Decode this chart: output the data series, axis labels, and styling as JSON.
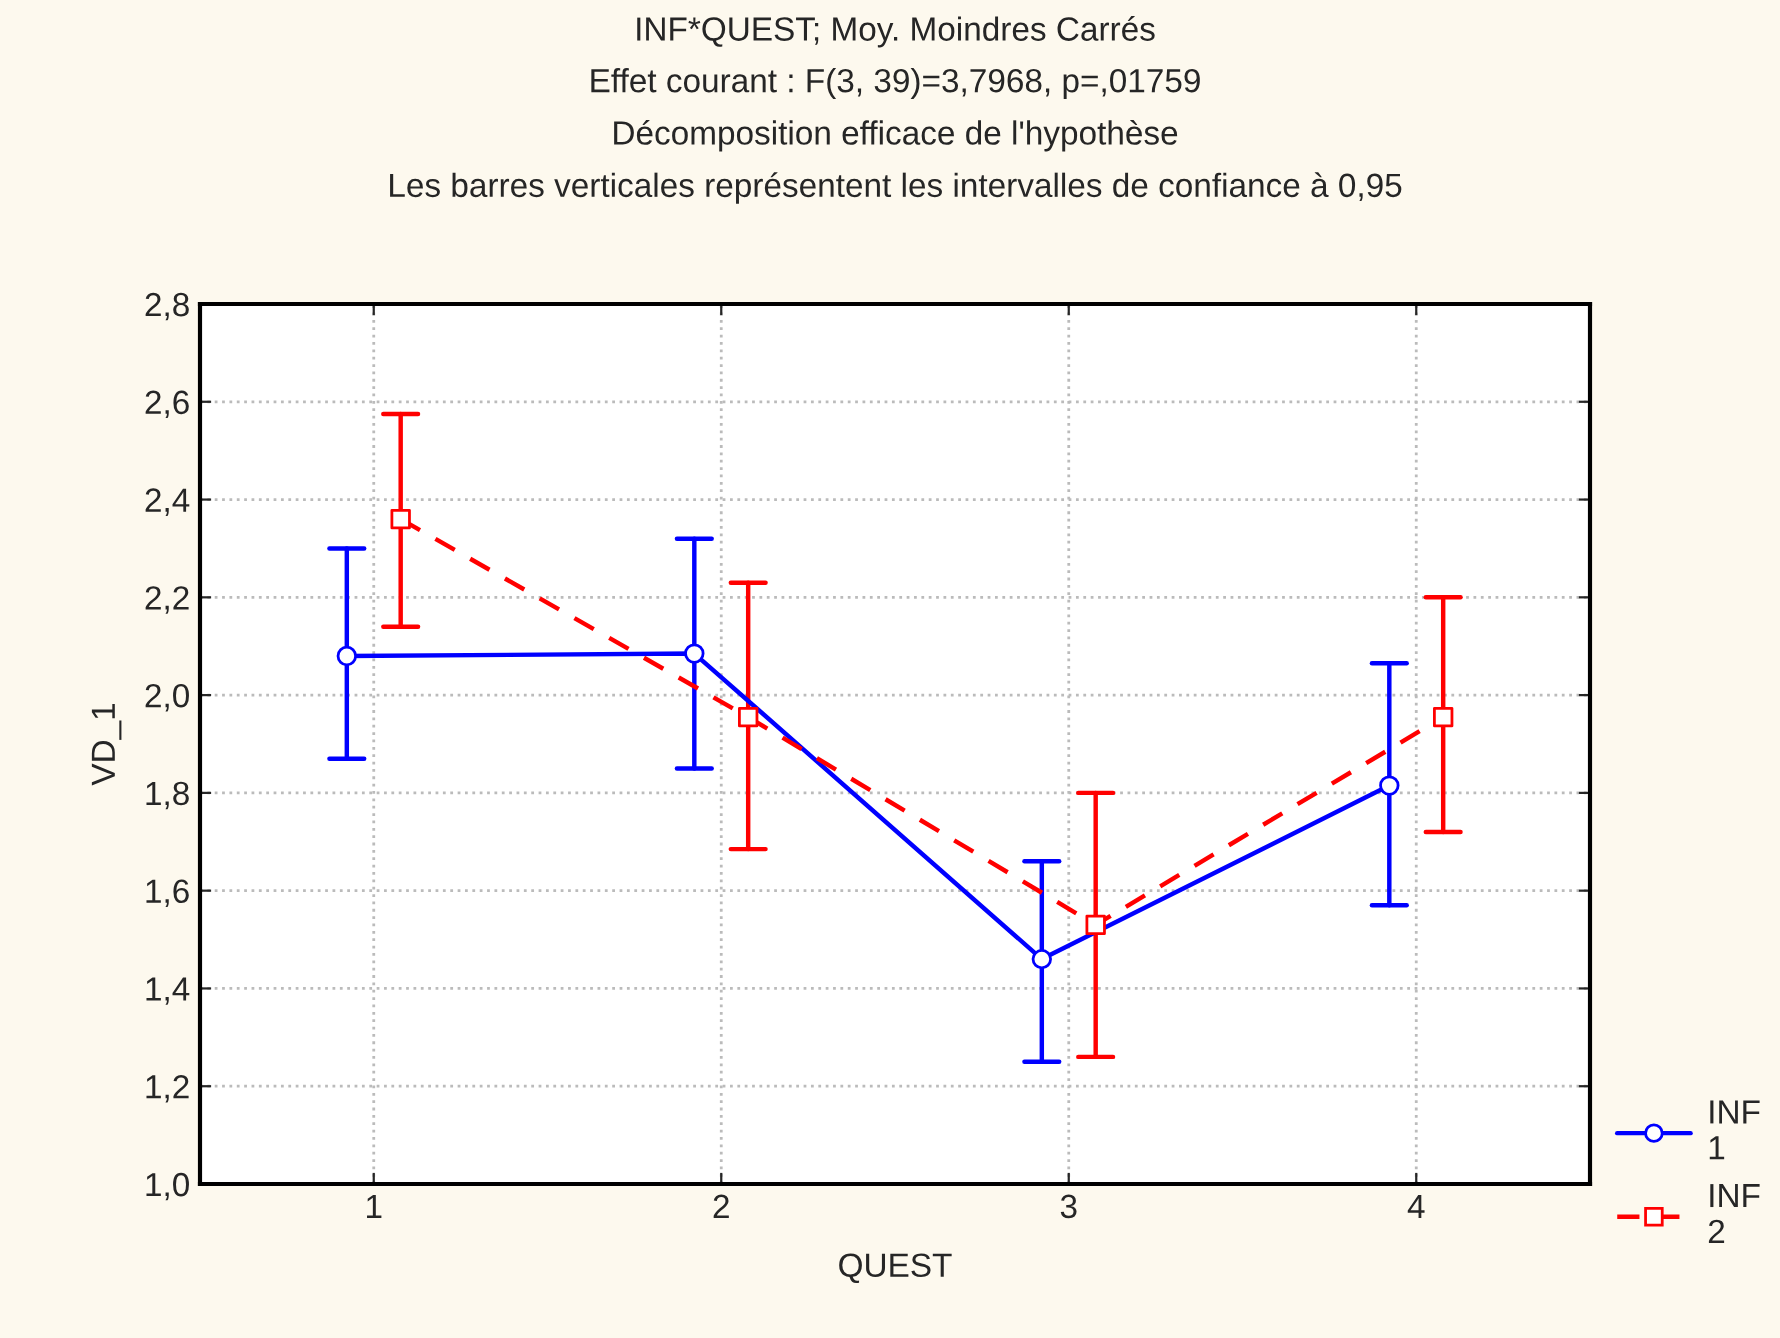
{
  "chart_data": {
    "type": "line",
    "title": "INF*QUEST; Moy. Moindres Carrés\nEffet courant : F(3, 39)=3,7968, p=,01759\nDécomposition efficace de l'hypothèse\nLes barres verticales représentent les intervalles de confiance à 0,95",
    "xlabel": "QUEST",
    "ylabel": "VD_1",
    "categories": [
      "1",
      "2",
      "3",
      "4"
    ],
    "series": [
      {
        "name": "INF\n1",
        "color": "#0000ff",
        "marker": "circle",
        "line_style": "solid",
        "values": [
          2.08,
          2.085,
          1.46,
          1.815
        ],
        "errors": [
          [
            1.87,
            2.3
          ],
          [
            1.85,
            2.32
          ],
          [
            1.25,
            1.66
          ],
          [
            1.57,
            2.065
          ]
        ]
      },
      {
        "name": "INF\n2",
        "color": "#ff0000",
        "marker": "square",
        "line_style": "dashed",
        "values": [
          2.36,
          1.955,
          1.53,
          1.955
        ],
        "errors": [
          [
            2.14,
            2.575
          ],
          [
            1.685,
            2.23
          ],
          [
            1.26,
            1.8
          ],
          [
            1.72,
            2.2
          ]
        ]
      }
    ],
    "ylim": [
      1.0,
      2.8
    ],
    "yticks": [
      {
        "value": 1.0,
        "label": "1,0"
      },
      {
        "value": 1.2,
        "label": "1,2"
      },
      {
        "value": 1.4,
        "label": "1,4"
      },
      {
        "value": 1.6,
        "label": "1,6"
      },
      {
        "value": 1.8,
        "label": "1,8"
      },
      {
        "value": 2.0,
        "label": "2,0"
      },
      {
        "value": 2.2,
        "label": "2,2"
      },
      {
        "value": 2.4,
        "label": "2,4"
      },
      {
        "value": 2.6,
        "label": "2,6"
      },
      {
        "value": 2.8,
        "label": "2,8"
      }
    ],
    "grid": true,
    "legend": "bottom right"
  }
}
